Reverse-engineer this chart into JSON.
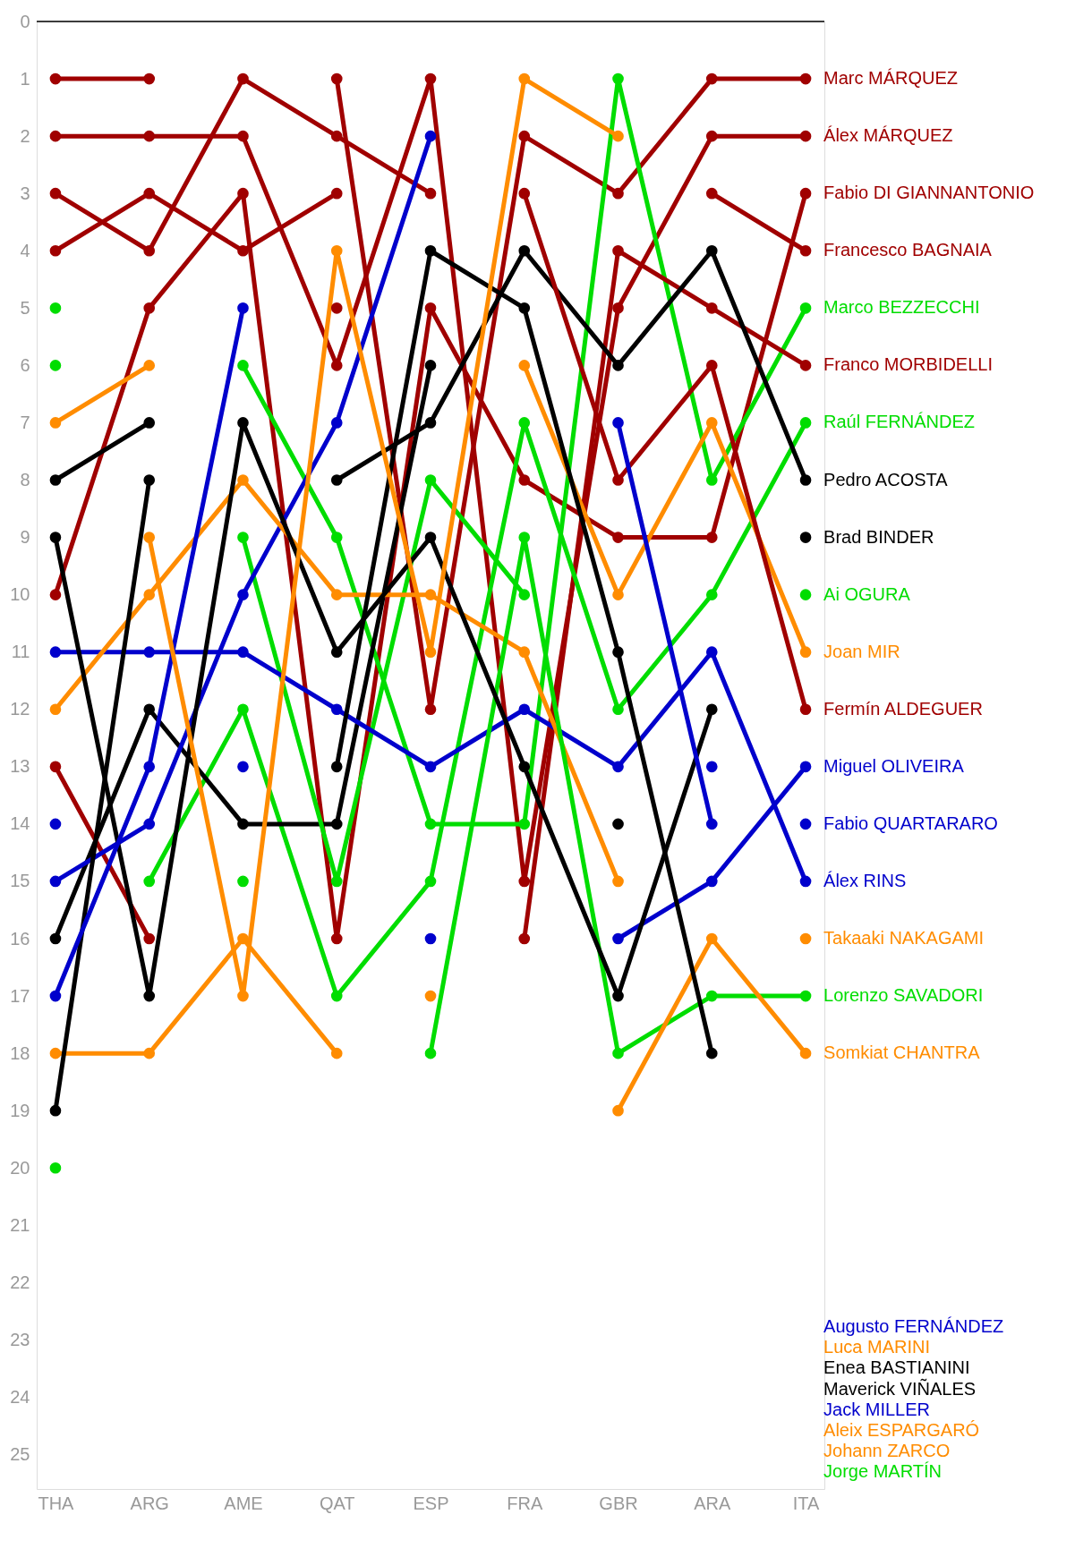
{
  "chart_data": {
    "type": "line",
    "categories": [
      "THA",
      "ARG",
      "AME",
      "QAT",
      "ESP",
      "FRA",
      "GBR",
      "ARA",
      "ITA"
    ],
    "ylim": [
      25.6,
      0
    ],
    "yticks": [
      0,
      1,
      2,
      3,
      4,
      5,
      6,
      7,
      8,
      9,
      10,
      11,
      12,
      13,
      14,
      15,
      16,
      17,
      18,
      19,
      20,
      21,
      22,
      23,
      24,
      25
    ],
    "grid": false,
    "legend": false,
    "marker": "circle",
    "line_style": "solid",
    "ref_lines": [
      {
        "axis": "y",
        "value": 0,
        "color": "#000000"
      }
    ],
    "series": [
      {
        "name": "Marc MÁRQUEZ",
        "color": "#a00000",
        "values": [
          1,
          1,
          null,
          1,
          12,
          2,
          3,
          1,
          1
        ]
      },
      {
        "name": "Álex MÁRQUEZ",
        "color": "#a00000",
        "values": [
          2,
          2,
          2,
          6,
          1,
          15,
          5,
          2,
          2
        ]
      },
      {
        "name": "Fabio DI GIANNANTONIO",
        "color": "#a00000",
        "values": [
          10,
          5,
          3,
          16,
          5,
          8,
          9,
          9,
          3
        ]
      },
      {
        "name": "Francesco BAGNAIA",
        "color": "#a00000",
        "values": [
          3,
          4,
          1,
          2,
          3,
          null,
          null,
          3,
          4
        ]
      },
      {
        "name": "Marco BEZZECCHI",
        "color": "#00dd00",
        "values": [
          6,
          null,
          6,
          9,
          14,
          14,
          1,
          8,
          5
        ]
      },
      {
        "name": "Franco MORBIDELLI",
        "color": "#a00000",
        "values": [
          4,
          3,
          4,
          3,
          null,
          16,
          4,
          5,
          6
        ]
      },
      {
        "name": "Raúl FERNÁNDEZ",
        "color": "#00dd00",
        "values": [
          null,
          15,
          12,
          17,
          15,
          7,
          12,
          10,
          7
        ]
      },
      {
        "name": "Pedro ACOSTA",
        "color": "#000000",
        "values": [
          8,
          7,
          null,
          8,
          7,
          4,
          6,
          4,
          8
        ]
      },
      {
        "name": "Brad BINDER",
        "color": "#000000",
        "values": [
          16,
          12,
          14,
          14,
          6,
          null,
          14,
          null,
          9
        ]
      },
      {
        "name": "Ai OGURA",
        "color": "#00dd00",
        "values": [
          5,
          null,
          9,
          15,
          8,
          10,
          null,
          null,
          10
        ]
      },
      {
        "name": "Joan MIR",
        "color": "#ff8c00",
        "values": [
          7,
          6,
          null,
          null,
          null,
          6,
          10,
          7,
          11
        ]
      },
      {
        "name": "Fermín ALDEGUER",
        "color": "#a00000",
        "values": [
          13,
          16,
          null,
          5,
          null,
          3,
          8,
          6,
          12
        ]
      },
      {
        "name": "Miguel OLIVEIRA",
        "color": "#0000cc",
        "values": [
          14,
          null,
          null,
          null,
          null,
          null,
          16,
          15,
          13
        ]
      },
      {
        "name": "Augusto FERNÁNDEZ",
        "color": "#0000cc",
        "values": [
          null,
          null,
          13,
          null,
          null,
          null,
          null,
          13,
          null
        ]
      },
      {
        "name": "Fabio QUARTARARO",
        "color": "#0000cc",
        "values": [
          15,
          14,
          10,
          7,
          2,
          null,
          null,
          null,
          14
        ]
      },
      {
        "name": "Álex RINS",
        "color": "#0000cc",
        "values": [
          11,
          11,
          11,
          12,
          13,
          12,
          13,
          11,
          15
        ]
      },
      {
        "name": "Luca MARINI",
        "color": "#ff8c00",
        "values": [
          12,
          10,
          8,
          10,
          10,
          11,
          15,
          null,
          null
        ]
      },
      {
        "name": "Takaaki NAKAGAMI",
        "color": "#ff8c00",
        "values": [
          null,
          null,
          null,
          null,
          null,
          null,
          null,
          null,
          16
        ]
      },
      {
        "name": "Lorenzo SAVADORI",
        "color": "#00dd00",
        "values": [
          20,
          null,
          15,
          null,
          18,
          9,
          18,
          17,
          17
        ]
      },
      {
        "name": "Somkiat CHANTRA",
        "color": "#ff8c00",
        "values": [
          18,
          18,
          16,
          18,
          null,
          null,
          19,
          16,
          18
        ]
      },
      {
        "name": "Enea BASTIANINI",
        "color": "#000000",
        "values": [
          9,
          17,
          7,
          11,
          9,
          13,
          17,
          12,
          null
        ]
      },
      {
        "name": "Maverick VIÑALES",
        "color": "#000000",
        "values": [
          19,
          8,
          null,
          13,
          4,
          5,
          11,
          18,
          null
        ]
      },
      {
        "name": "Jack MILLER",
        "color": "#0000cc",
        "values": [
          17,
          13,
          5,
          null,
          16,
          null,
          7,
          14,
          null
        ]
      },
      {
        "name": "Aleix ESPARGARÓ",
        "color": "#ff8c00",
        "values": [
          null,
          null,
          null,
          null,
          17,
          null,
          null,
          null,
          null
        ]
      },
      {
        "name": "Johann ZARCO",
        "color": "#ff8c00",
        "values": [
          null,
          9,
          17,
          4,
          11,
          1,
          2,
          null,
          null
        ]
      },
      {
        "name": "Jorge MARTÍN",
        "color": "#00dd00",
        "values": [
          null,
          null,
          null,
          null,
          null,
          null,
          null,
          null,
          null
        ]
      }
    ]
  }
}
